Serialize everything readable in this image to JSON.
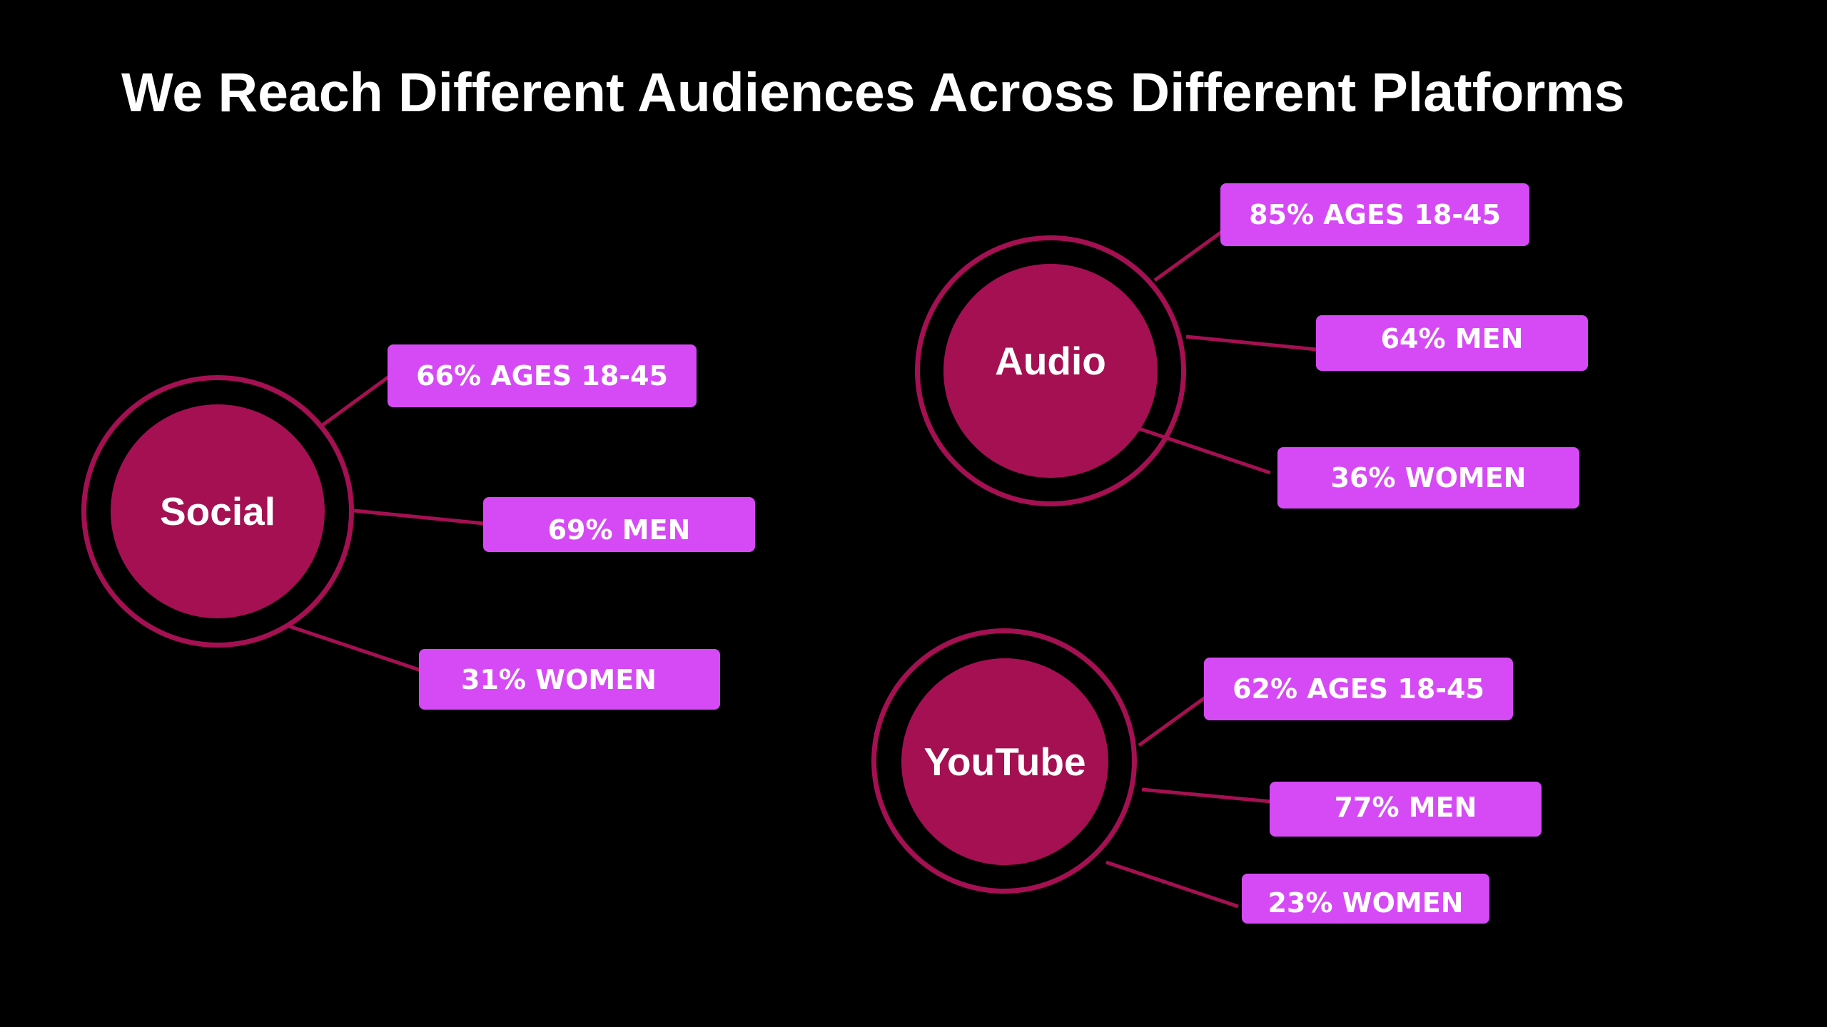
{
  "title": "We Reach Different Audiences Across Different Platforms",
  "colors": {
    "background": "#000000",
    "node": "#a51052",
    "tag": "#d64af5",
    "text": "#ffffff"
  },
  "platforms": [
    {
      "name": "Social",
      "stats": [
        "66% AGES 18-45",
        "69% MEN",
        "31% WOMEN"
      ]
    },
    {
      "name": "Audio",
      "stats": [
        "85% AGES 18-45",
        "64% MEN",
        "36% WOMEN"
      ]
    },
    {
      "name": "YouTube",
      "stats": [
        "62% AGES 18-45",
        "77% MEN",
        "23% WOMEN"
      ]
    }
  ]
}
